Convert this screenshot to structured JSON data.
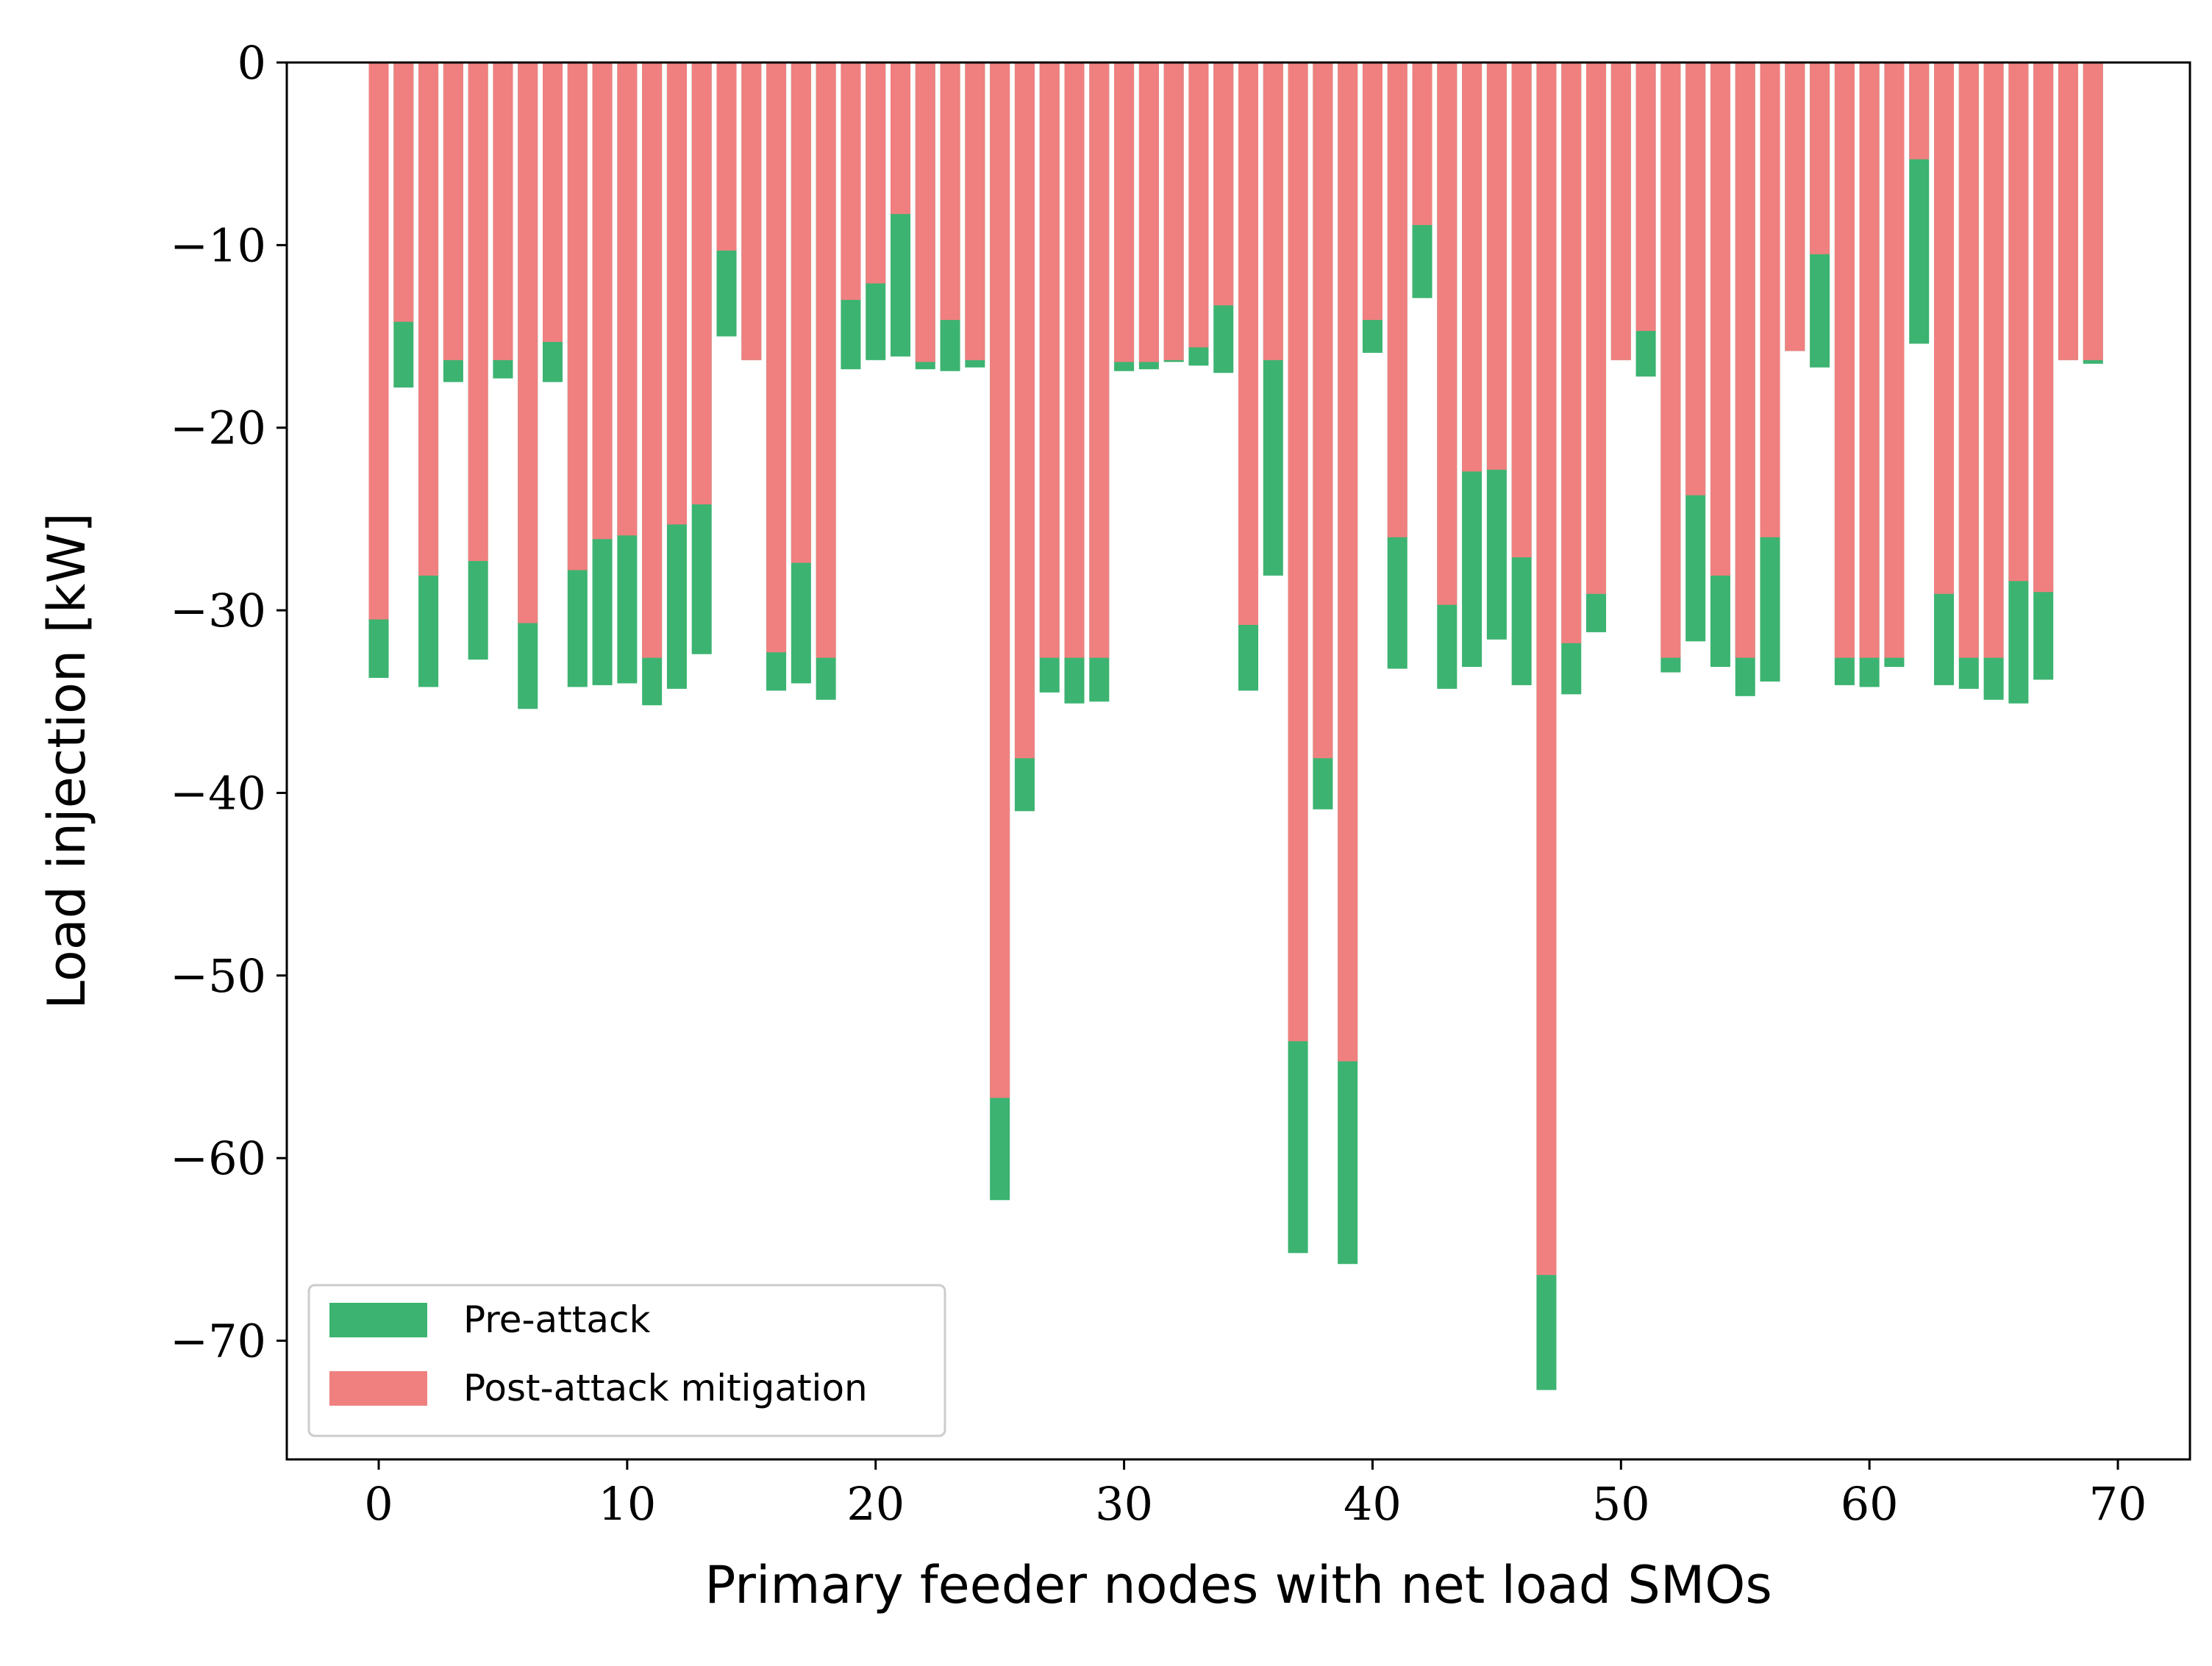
{
  "chart_data": {
    "type": "bar",
    "xlabel": "Primary feeder nodes with net load SMOs",
    "ylabel": "Load injection [kW]",
    "xlim": [
      -3.7,
      72.9
    ],
    "ylim": [
      -76.5,
      0
    ],
    "xticks": [
      0,
      10,
      20,
      30,
      40,
      50,
      60,
      70
    ],
    "xtick_labels": [
      "0",
      "10",
      "20",
      "30",
      "40",
      "50",
      "60",
      "70"
    ],
    "yticks": [
      0,
      -10,
      -20,
      -30,
      -40,
      -50,
      -60,
      -70
    ],
    "ytick_labels": [
      "0",
      "−10",
      "−20",
      "−30",
      "−40",
      "−50",
      "−60",
      "−70"
    ],
    "grid": false,
    "legend_position": "lower-left",
    "colors": {
      "pre": "#3cb371",
      "post": "#f08080"
    },
    "series": [
      {
        "name": "Pre-attack",
        "color": "#3cb371",
        "values": [
          -33.7,
          -17.8,
          -34.2,
          -17.5,
          -32.7,
          -17.3,
          -35.4,
          -17.5,
          -34.2,
          -34.1,
          -34.0,
          -35.2,
          -34.3,
          -32.4,
          -15.0,
          -16.3,
          -34.4,
          -34.0,
          -34.9,
          -16.8,
          -16.3,
          -16.1,
          -16.8,
          -16.9,
          -16.7,
          -62.3,
          -41.0,
          -34.5,
          -35.1,
          -35.0,
          -16.9,
          -16.8,
          -16.4,
          -16.6,
          -17.0,
          -34.4,
          -28.1,
          -65.2,
          -40.9,
          -65.8,
          -15.9,
          -33.2,
          -12.9,
          -34.3,
          -33.1,
          -31.6,
          -34.1,
          -72.7,
          -34.6,
          -31.2,
          -16.3,
          -17.2,
          -33.4,
          -31.7,
          -33.1,
          -34.7,
          -33.9,
          -15.8,
          -16.7,
          -34.1,
          -34.2,
          -33.1,
          -15.4,
          -34.1,
          -34.3,
          -34.9,
          -35.1,
          -33.8,
          -16.3,
          -16.5
        ]
      },
      {
        "name": "Post-attack mitigation",
        "color": "#f08080",
        "values": [
          -30.5,
          -14.2,
          -28.1,
          -16.3,
          -27.3,
          -16.3,
          -30.7,
          -15.3,
          -27.8,
          -26.1,
          -25.9,
          -32.6,
          -25.3,
          -24.2,
          -10.3,
          -16.3,
          -32.3,
          -27.4,
          -32.6,
          -13.0,
          -12.1,
          -8.3,
          -16.4,
          -14.1,
          -16.3,
          -56.7,
          -38.1,
          -32.6,
          -32.6,
          -32.6,
          -16.4,
          -16.4,
          -16.3,
          -15.6,
          -13.3,
          -30.8,
          -16.3,
          -53.6,
          -38.1,
          -54.7,
          -14.1,
          -26.0,
          -8.9,
          -29.7,
          -22.4,
          -22.3,
          -27.1,
          -66.4,
          -31.8,
          -29.1,
          -16.3,
          -14.7,
          -32.6,
          -23.7,
          -28.1,
          -32.6,
          -26.0,
          -15.8,
          -10.5,
          -32.6,
          -32.6,
          -32.6,
          -5.3,
          -29.1,
          -32.6,
          -32.6,
          -28.4,
          -29.0,
          -16.3,
          -16.3
        ]
      }
    ]
  }
}
